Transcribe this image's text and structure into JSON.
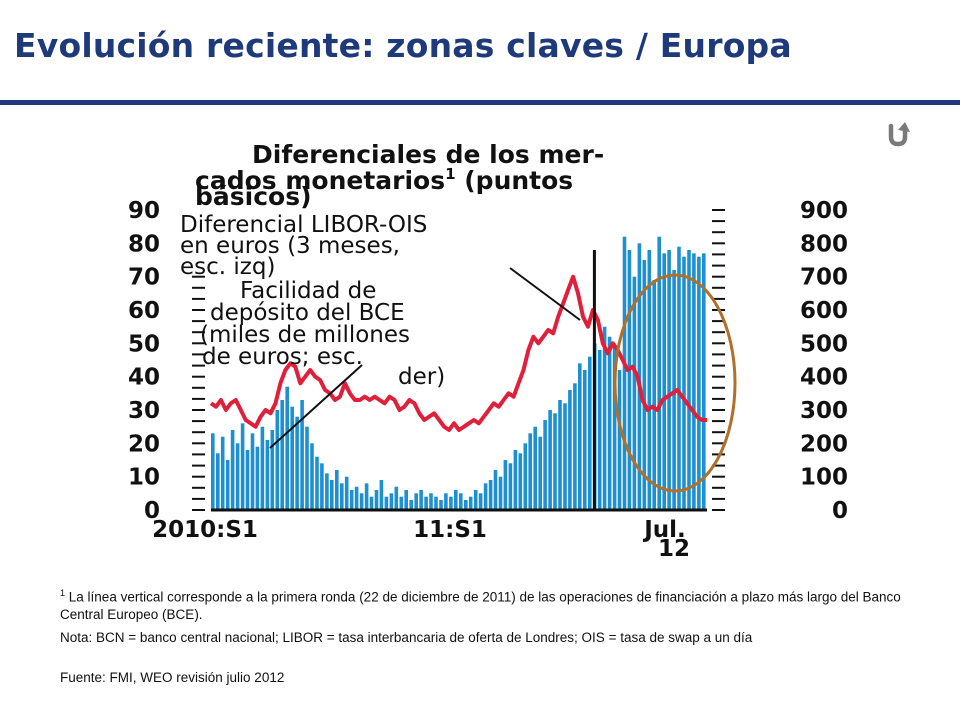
{
  "slide": {
    "title": "Evolución reciente:  zonas claves / Europa",
    "return_icon": "return-arrow-icon",
    "footnote_marker": "1",
    "footnote": "La línea vertical corresponde a la primera ronda (22 de diciembre de 2011) de las operaciones de financiación a plazo más largo del Banco Central Europeo (BCE).",
    "note": "Nota: BCN = banco central nacional; LIBOR = tasa interbancaria de oferta de Londres; OIS = tasa de swap a un día",
    "source": "Fuente: FMI, WEO revisión julio 2012",
    "title_color": "#1f3a7a"
  },
  "chart_data": {
    "type": "bar",
    "title_lines": [
      "Diferenciales de los mer-",
      "cados monetarios",
      "básicos)"
    ],
    "title_marker": "1",
    "title_line2_tail": " (puntos",
    "left_axis": {
      "ticks": [
        "90",
        "80",
        "70",
        "60",
        "50",
        "40",
        "30",
        "20",
        "10",
        "0"
      ],
      "ylim": [
        0,
        90
      ]
    },
    "right_axis": {
      "ticks": [
        "900",
        "800",
        "700",
        "600",
        "500",
        "400",
        "300",
        "200",
        "100",
        "0"
      ],
      "ylim": [
        0,
        900
      ]
    },
    "x_ticks": [
      "2010:S1",
      "11:S1",
      "Jul.",
      "12"
    ],
    "annotations": {
      "libor_ois": [
        "Diferencial LIBOR-OIS",
        "en euros (3 meses,",
        "esc. izq)"
      ],
      "ecb_deposit": [
        "Facilidad de",
        "depósito del BCE",
        "(miles de millones",
        "de euros; esc.",
        "der)"
      ]
    },
    "vertical_line": {
      "label_ref": "1",
      "date": "2011-12-22",
      "x": 0.773
    },
    "highlight": "oval",
    "colors": {
      "bars": "#1e90d2",
      "line": "#e0203a",
      "oval": "#b0702a"
    },
    "series": [
      {
        "name": "Diferencial LIBOR-OIS en euros (3 meses, esc. izq)",
        "axis": "left",
        "type": "line",
        "x": [
          0,
          0.01,
          0.02,
          0.03,
          0.04,
          0.05,
          0.06,
          0.07,
          0.08,
          0.09,
          0.1,
          0.11,
          0.12,
          0.13,
          0.14,
          0.15,
          0.16,
          0.17,
          0.18,
          0.19,
          0.2,
          0.21,
          0.22,
          0.23,
          0.24,
          0.25,
          0.26,
          0.27,
          0.28,
          0.29,
          0.3,
          0.31,
          0.32,
          0.33,
          0.34,
          0.35,
          0.36,
          0.37,
          0.38,
          0.39,
          0.4,
          0.41,
          0.42,
          0.43,
          0.44,
          0.45,
          0.46,
          0.47,
          0.48,
          0.49,
          0.5,
          0.51,
          0.52,
          0.53,
          0.54,
          0.55,
          0.56,
          0.57,
          0.58,
          0.59,
          0.6,
          0.61,
          0.62,
          0.63,
          0.64,
          0.65,
          0.66,
          0.67,
          0.68,
          0.69,
          0.7,
          0.71,
          0.72,
          0.73,
          0.74,
          0.75,
          0.76,
          0.77,
          0.78,
          0.79,
          0.8,
          0.81,
          0.82,
          0.83,
          0.84,
          0.85,
          0.86,
          0.87,
          0.88,
          0.89,
          0.9,
          0.91,
          0.92,
          0.93,
          0.94,
          0.95,
          0.96,
          0.97,
          0.98,
          0.99,
          1.0
        ],
        "values": [
          32,
          31,
          33,
          30,
          32,
          33,
          30,
          27,
          26,
          25,
          28,
          30,
          29,
          32,
          38,
          42,
          44,
          43,
          38,
          40,
          42,
          40,
          39,
          36,
          35,
          33,
          34,
          38,
          35,
          33,
          33,
          34,
          33,
          34,
          33,
          32,
          34,
          33,
          30,
          31,
          33,
          32,
          29,
          27,
          28,
          29,
          27,
          25,
          24,
          26,
          24,
          25,
          26,
          27,
          26,
          28,
          30,
          32,
          31,
          33,
          35,
          34,
          38,
          42,
          48,
          52,
          50,
          52,
          54,
          53,
          58,
          62,
          66,
          70,
          65,
          58,
          55,
          60,
          57,
          50,
          47,
          50,
          48,
          45,
          42,
          43,
          40,
          33,
          30,
          31,
          30,
          33,
          34,
          35,
          36,
          34,
          32,
          30,
          28,
          27,
          27
        ]
      },
      {
        "name": "Facilidad de depósito del BCE (miles de millones de euros; esc. der)",
        "axis": "right",
        "type": "bar",
        "x": [
          0,
          0.01,
          0.02,
          0.03,
          0.04,
          0.05,
          0.06,
          0.07,
          0.08,
          0.09,
          0.1,
          0.11,
          0.12,
          0.13,
          0.14,
          0.15,
          0.16,
          0.17,
          0.18,
          0.19,
          0.2,
          0.21,
          0.22,
          0.23,
          0.24,
          0.25,
          0.26,
          0.27,
          0.28,
          0.29,
          0.3,
          0.31,
          0.32,
          0.33,
          0.34,
          0.35,
          0.36,
          0.37,
          0.38,
          0.39,
          0.4,
          0.41,
          0.42,
          0.43,
          0.44,
          0.45,
          0.46,
          0.47,
          0.48,
          0.49,
          0.5,
          0.51,
          0.52,
          0.53,
          0.54,
          0.55,
          0.56,
          0.57,
          0.58,
          0.59,
          0.6,
          0.61,
          0.62,
          0.63,
          0.64,
          0.65,
          0.66,
          0.67,
          0.68,
          0.69,
          0.7,
          0.71,
          0.72,
          0.73,
          0.74,
          0.75,
          0.76,
          0.77,
          0.78,
          0.79,
          0.8,
          0.81,
          0.82,
          0.83,
          0.84,
          0.85,
          0.86,
          0.87,
          0.88,
          0.89,
          0.9,
          0.91,
          0.92,
          0.93,
          0.94,
          0.95,
          0.96,
          0.97,
          0.98,
          0.99
        ],
        "values": [
          230,
          170,
          220,
          150,
          240,
          200,
          260,
          180,
          230,
          190,
          250,
          210,
          240,
          300,
          330,
          370,
          310,
          280,
          330,
          250,
          200,
          160,
          140,
          110,
          90,
          120,
          80,
          100,
          60,
          70,
          50,
          80,
          40,
          60,
          90,
          40,
          50,
          70,
          40,
          60,
          30,
          50,
          60,
          40,
          50,
          40,
          30,
          50,
          40,
          60,
          50,
          30,
          40,
          60,
          50,
          80,
          90,
          120,
          100,
          150,
          140,
          180,
          170,
          200,
          230,
          250,
          220,
          270,
          300,
          290,
          330,
          320,
          360,
          380,
          440,
          420,
          460,
          500,
          480,
          550,
          520,
          490,
          420,
          820,
          780,
          700,
          800,
          750,
          780,
          690,
          820,
          770,
          780,
          720,
          790,
          760,
          780,
          770,
          760,
          770
        ]
      }
    ]
  }
}
